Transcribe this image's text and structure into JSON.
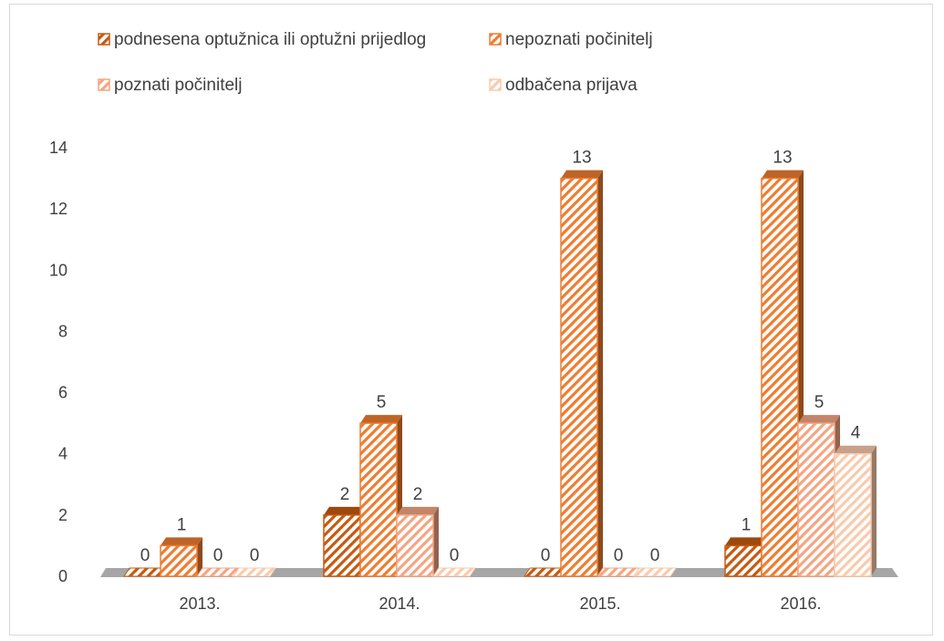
{
  "chart_data": {
    "type": "bar",
    "categories": [
      "2013.",
      "2014.",
      "2015.",
      "2016."
    ],
    "series": [
      {
        "name": "podnesena optužnica ili optužni prijedlog",
        "values": [
          0,
          2,
          0,
          1
        ],
        "color": "#c55a11"
      },
      {
        "name": "nepoznati počinitelj",
        "values": [
          1,
          5,
          13,
          13
        ],
        "color": "#ed7d31"
      },
      {
        "name": "poznati počinitelj",
        "values": [
          0,
          2,
          0,
          5
        ],
        "color": "#f4a582"
      },
      {
        "name": "odbačena prijava",
        "values": [
          0,
          0,
          0,
          4
        ],
        "color": "#f8cbad"
      }
    ],
    "ylim": [
      0,
      14
    ],
    "yticks": [
      "0",
      "2",
      "4",
      "6",
      "8",
      "10",
      "12",
      "14"
    ],
    "legend_position": "top",
    "grid": false
  }
}
